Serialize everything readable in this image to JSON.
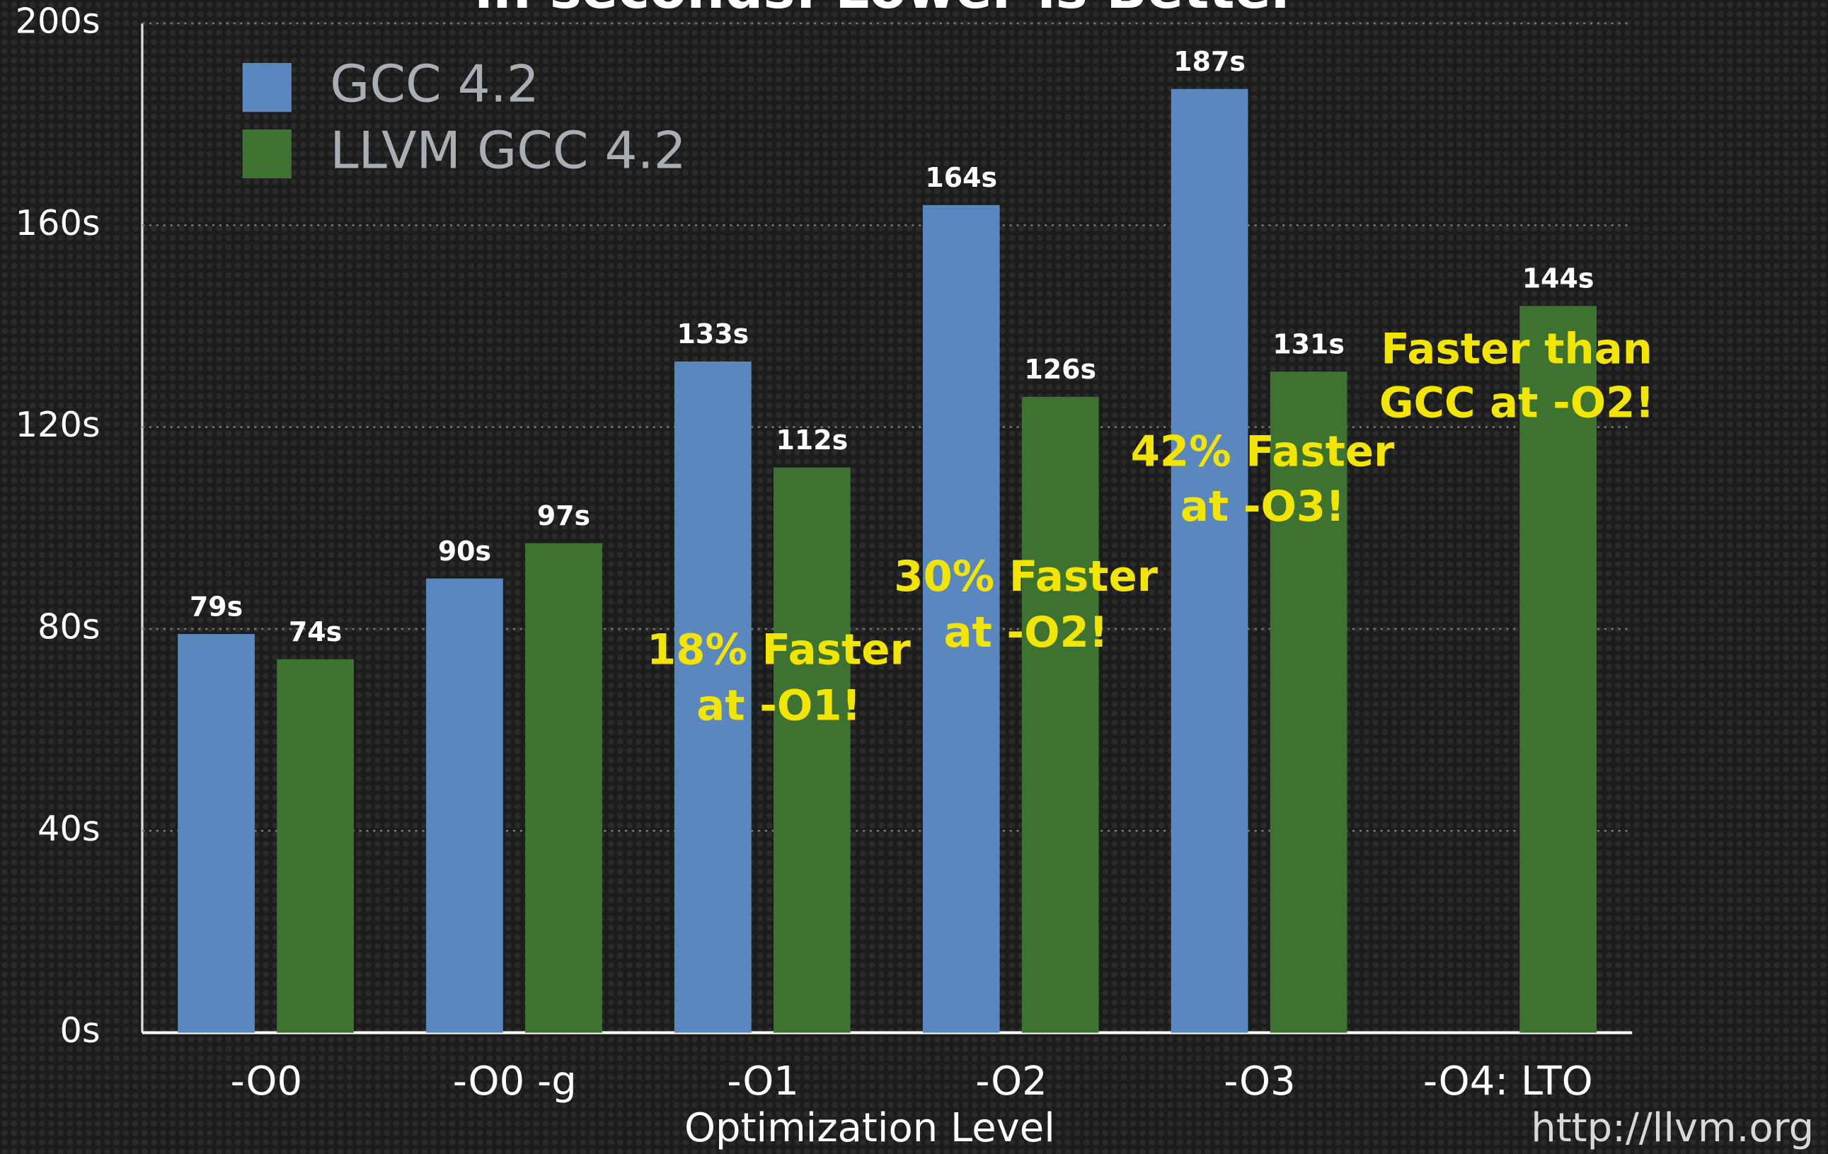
{
  "chart_data": {
    "type": "bar",
    "title": "in seconds: Lower is Better",
    "categories": [
      "-O0",
      "-O0 -g",
      "-O1",
      "-O2",
      "-O3",
      "-O4: LTO"
    ],
    "series": [
      {
        "name": "GCC 4.2",
        "color": "#5b87bf",
        "values": [
          79,
          90,
          133,
          164,
          187,
          null
        ],
        "value_labels": [
          "79s",
          "90s",
          "133s",
          "164s",
          "187s",
          null
        ]
      },
      {
        "name": "LLVM GCC 4.2",
        "color": "#3e7231",
        "values": [
          74,
          97,
          112,
          126,
          131,
          144
        ],
        "value_labels": [
          "74s",
          "97s",
          "112s",
          "126s",
          "131s",
          "144s"
        ]
      }
    ],
    "ylim": [
      0,
      200
    ],
    "yticks": [
      {
        "value": 0,
        "label": "0s"
      },
      {
        "value": 40,
        "label": "40s"
      },
      {
        "value": 80,
        "label": "80s"
      },
      {
        "value": 120,
        "label": "120s"
      },
      {
        "value": 160,
        "label": "160s"
      },
      {
        "value": 200,
        "label": "200s"
      }
    ],
    "grid": true,
    "x_label": "Optimization Level",
    "annotations": [
      [
        "18% Faster",
        "at -O1!"
      ],
      [
        "30% Faster",
        "at -O2!"
      ],
      [
        "42% Faster",
        "at -O3!"
      ],
      [
        "Faster than",
        "GCC at -O2!"
      ]
    ],
    "footer": "http://llvm.org"
  }
}
